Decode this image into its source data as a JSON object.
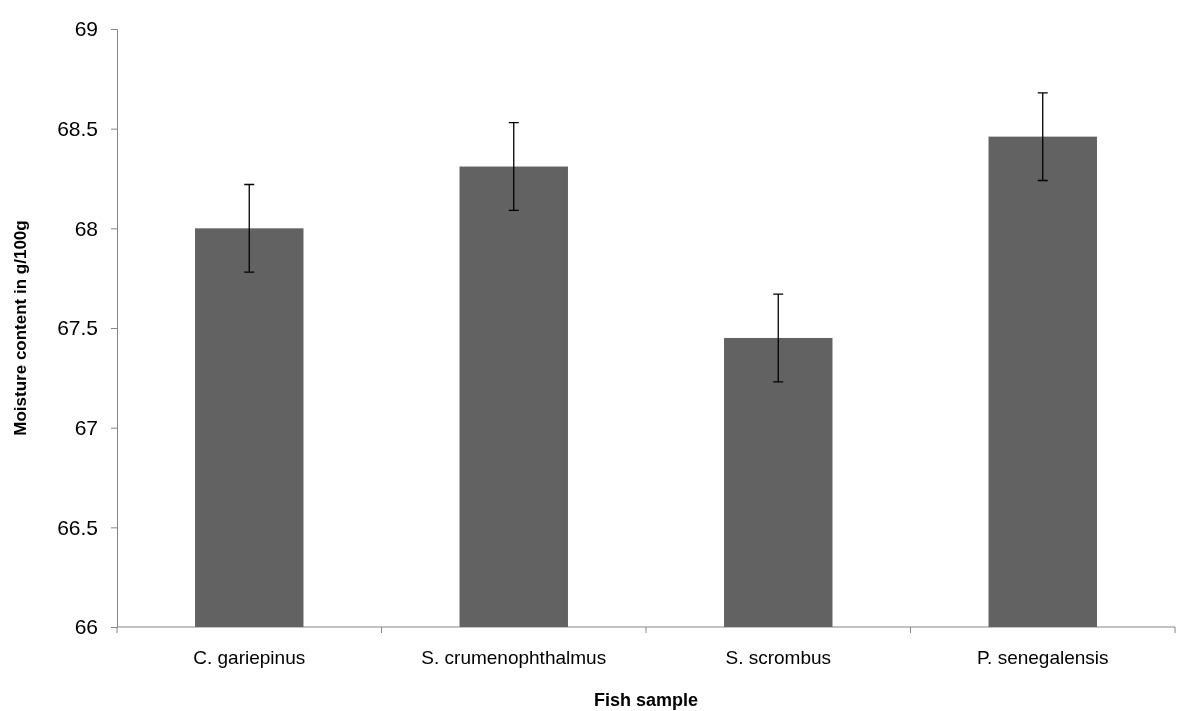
{
  "chart_data": {
    "type": "bar",
    "xlabel": "Fish sample",
    "ylabel": "Moisture content in g/100g",
    "categories": [
      "C. gariepinus",
      "S. crumenophthalmus",
      "S. scrombus",
      "P. senegalensis"
    ],
    "values": [
      68.0,
      68.31,
      67.45,
      68.46
    ],
    "errors": [
      0.22,
      0.22,
      0.22,
      0.22
    ],
    "color": "#626262",
    "ylim": [
      66,
      69
    ],
    "yticks": [
      66,
      66.5,
      67,
      67.5,
      68,
      68.5,
      69
    ],
    "grid": false,
    "legend": false
  }
}
